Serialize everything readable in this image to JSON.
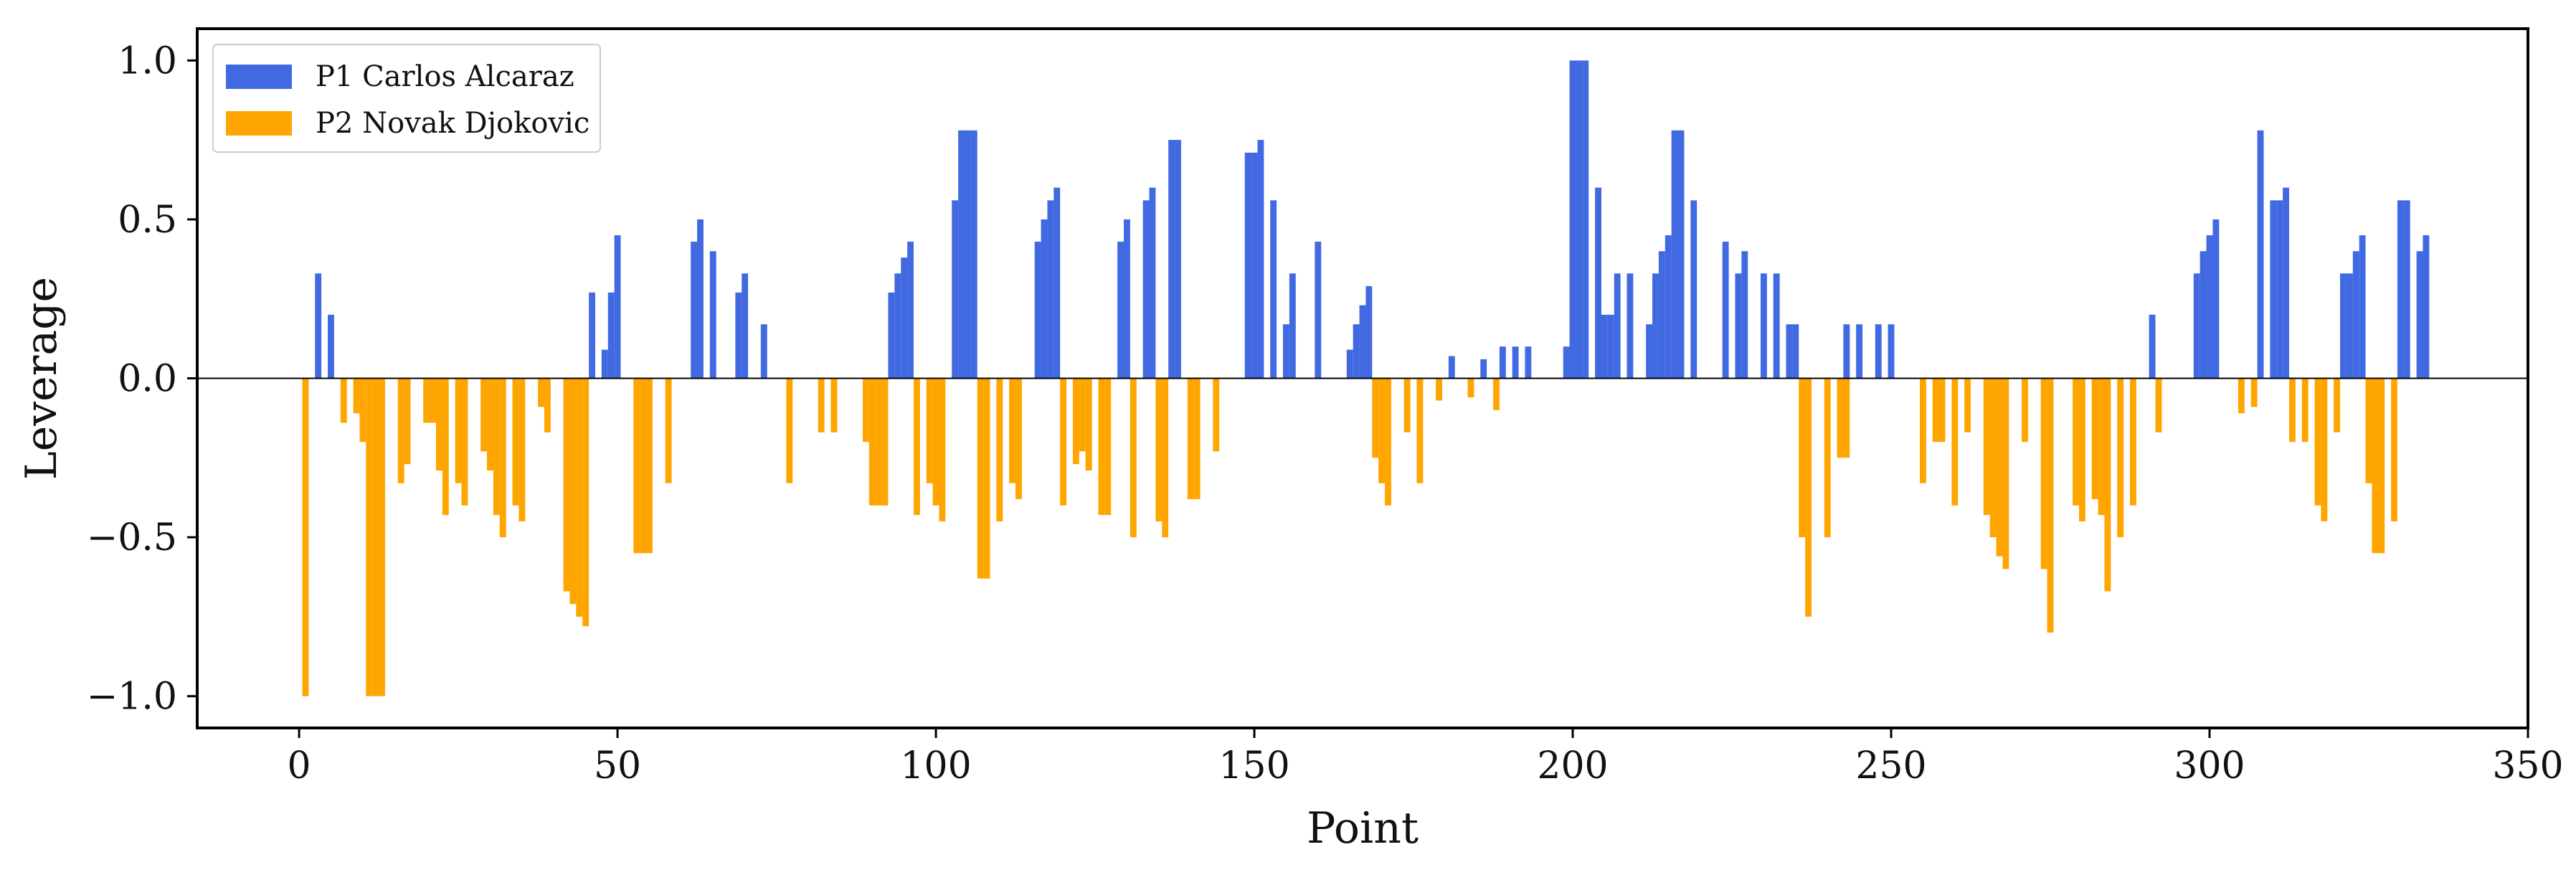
{
  "chart_data": {
    "type": "bar",
    "xlabel": "Point",
    "ylabel": "Leverage",
    "xlim": [
      -16,
      350
    ],
    "ylim": [
      -1.1,
      1.1
    ],
    "grid": false,
    "legend_placement": "upper-left",
    "x_ticks": [
      {
        "value": 0,
        "label": "0"
      },
      {
        "value": 50,
        "label": "50"
      },
      {
        "value": 100,
        "label": "100"
      },
      {
        "value": 150,
        "label": "150"
      },
      {
        "value": 200,
        "label": "200"
      },
      {
        "value": 250,
        "label": "250"
      },
      {
        "value": 300,
        "label": "300"
      },
      {
        "value": 350,
        "label": "350"
      }
    ],
    "y_ticks": [
      {
        "value": 1.0,
        "label": "1.0"
      },
      {
        "value": 0.5,
        "label": "0.5"
      },
      {
        "value": 0.0,
        "label": "0.0"
      },
      {
        "value": -0.5,
        "label": "−0.5"
      },
      {
        "value": -1.0,
        "label": "−1.0"
      }
    ],
    "series": [
      {
        "name": "P1 Carlos Alcaraz",
        "color": "#4169e1",
        "points": [
          [
            3,
            0.33
          ],
          [
            5,
            0.2
          ],
          [
            46,
            0.27
          ],
          [
            48,
            0.09
          ],
          [
            49,
            0.27
          ],
          [
            50,
            0.45
          ],
          [
            62,
            0.43
          ],
          [
            63,
            0.5
          ],
          [
            65,
            0.4
          ],
          [
            69,
            0.27
          ],
          [
            70,
            0.33
          ],
          [
            73,
            0.17
          ],
          [
            93,
            0.27
          ],
          [
            94,
            0.33
          ],
          [
            95,
            0.38
          ],
          [
            96,
            0.43
          ],
          [
            103,
            0.56
          ],
          [
            104,
            0.78
          ],
          [
            105,
            0.78
          ],
          [
            106,
            0.78
          ],
          [
            116,
            0.43
          ],
          [
            117,
            0.5
          ],
          [
            118,
            0.56
          ],
          [
            119,
            0.6
          ],
          [
            129,
            0.43
          ],
          [
            130,
            0.5
          ],
          [
            133,
            0.56
          ],
          [
            134,
            0.6
          ],
          [
            137,
            0.75
          ],
          [
            138,
            0.75
          ],
          [
            149,
            0.71
          ],
          [
            150,
            0.71
          ],
          [
            151,
            0.75
          ],
          [
            153,
            0.56
          ],
          [
            155,
            0.17
          ],
          [
            156,
            0.33
          ],
          [
            160,
            0.43
          ],
          [
            165,
            0.09
          ],
          [
            166,
            0.17
          ],
          [
            167,
            0.23
          ],
          [
            168,
            0.29
          ],
          [
            181,
            0.07
          ],
          [
            186,
            0.06
          ],
          [
            189,
            0.1
          ],
          [
            191,
            0.1
          ],
          [
            193,
            0.1
          ],
          [
            199,
            0.1
          ],
          [
            200,
            1.0
          ],
          [
            201,
            1.0
          ],
          [
            202,
            1.0
          ],
          [
            204,
            0.6
          ],
          [
            205,
            0.2
          ],
          [
            206,
            0.2
          ],
          [
            207,
            0.33
          ],
          [
            209,
            0.33
          ],
          [
            212,
            0.17
          ],
          [
            213,
            0.33
          ],
          [
            214,
            0.4
          ],
          [
            215,
            0.45
          ],
          [
            216,
            0.78
          ],
          [
            217,
            0.78
          ],
          [
            219,
            0.56
          ],
          [
            224,
            0.43
          ],
          [
            226,
            0.33
          ],
          [
            227,
            0.4
          ],
          [
            230,
            0.33
          ],
          [
            232,
            0.33
          ],
          [
            234,
            0.17
          ],
          [
            235,
            0.17
          ],
          [
            243,
            0.17
          ],
          [
            245,
            0.17
          ],
          [
            248,
            0.17
          ],
          [
            250,
            0.17
          ],
          [
            291,
            0.2
          ],
          [
            298,
            0.33
          ],
          [
            299,
            0.4
          ],
          [
            300,
            0.45
          ],
          [
            301,
            0.5
          ],
          [
            308,
            0.78
          ],
          [
            310,
            0.56
          ],
          [
            311,
            0.56
          ],
          [
            312,
            0.6
          ],
          [
            321,
            0.33
          ],
          [
            322,
            0.33
          ],
          [
            323,
            0.4
          ],
          [
            324,
            0.45
          ],
          [
            330,
            0.56
          ],
          [
            331,
            0.56
          ],
          [
            333,
            0.4
          ],
          [
            334,
            0.45
          ]
        ]
      },
      {
        "name": "P2 Novak Djokovic",
        "color": "#ffa500",
        "points": [
          [
            1,
            -1.0
          ],
          [
            7,
            -0.14
          ],
          [
            9,
            -0.11
          ],
          [
            10,
            -0.2
          ],
          [
            11,
            -1.0
          ],
          [
            12,
            -1.0
          ],
          [
            13,
            -1.0
          ],
          [
            16,
            -0.33
          ],
          [
            17,
            -0.27
          ],
          [
            20,
            -0.14
          ],
          [
            21,
            -0.14
          ],
          [
            22,
            -0.29
          ],
          [
            23,
            -0.43
          ],
          [
            25,
            -0.33
          ],
          [
            26,
            -0.4
          ],
          [
            29,
            -0.23
          ],
          [
            30,
            -0.29
          ],
          [
            31,
            -0.43
          ],
          [
            32,
            -0.5
          ],
          [
            34,
            -0.4
          ],
          [
            35,
            -0.45
          ],
          [
            38,
            -0.09
          ],
          [
            39,
            -0.17
          ],
          [
            42,
            -0.67
          ],
          [
            43,
            -0.71
          ],
          [
            44,
            -0.75
          ],
          [
            45,
            -0.78
          ],
          [
            53,
            -0.55
          ],
          [
            54,
            -0.55
          ],
          [
            55,
            -0.55
          ],
          [
            58,
            -0.33
          ],
          [
            77,
            -0.33
          ],
          [
            82,
            -0.17
          ],
          [
            84,
            -0.17
          ],
          [
            89,
            -0.2
          ],
          [
            90,
            -0.4
          ],
          [
            91,
            -0.4
          ],
          [
            92,
            -0.4
          ],
          [
            97,
            -0.43
          ],
          [
            99,
            -0.33
          ],
          [
            100,
            -0.4
          ],
          [
            101,
            -0.45
          ],
          [
            107,
            -0.63
          ],
          [
            108,
            -0.63
          ],
          [
            110,
            -0.45
          ],
          [
            112,
            -0.33
          ],
          [
            113,
            -0.38
          ],
          [
            120,
            -0.4
          ],
          [
            122,
            -0.27
          ],
          [
            123,
            -0.23
          ],
          [
            124,
            -0.29
          ],
          [
            126,
            -0.43
          ],
          [
            127,
            -0.43
          ],
          [
            131,
            -0.5
          ],
          [
            135,
            -0.45
          ],
          [
            136,
            -0.5
          ],
          [
            140,
            -0.38
          ],
          [
            141,
            -0.38
          ],
          [
            144,
            -0.23
          ],
          [
            169,
            -0.25
          ],
          [
            170,
            -0.33
          ],
          [
            171,
            -0.4
          ],
          [
            174,
            -0.17
          ],
          [
            176,
            -0.33
          ],
          [
            179,
            -0.07
          ],
          [
            184,
            -0.06
          ],
          [
            188,
            -0.1
          ],
          [
            236,
            -0.5
          ],
          [
            237,
            -0.75
          ],
          [
            240,
            -0.5
          ],
          [
            242,
            -0.25
          ],
          [
            243,
            -0.25
          ],
          [
            255,
            -0.33
          ],
          [
            257,
            -0.2
          ],
          [
            258,
            -0.2
          ],
          [
            260,
            -0.4
          ],
          [
            262,
            -0.17
          ],
          [
            265,
            -0.43
          ],
          [
            266,
            -0.5
          ],
          [
            267,
            -0.56
          ],
          [
            268,
            -0.6
          ],
          [
            271,
            -0.2
          ],
          [
            274,
            -0.6
          ],
          [
            275,
            -0.8
          ],
          [
            279,
            -0.4
          ],
          [
            280,
            -0.45
          ],
          [
            282,
            -0.38
          ],
          [
            283,
            -0.43
          ],
          [
            284,
            -0.67
          ],
          [
            286,
            -0.5
          ],
          [
            288,
            -0.4
          ],
          [
            292,
            -0.17
          ],
          [
            305,
            -0.11
          ],
          [
            307,
            -0.09
          ],
          [
            313,
            -0.2
          ],
          [
            315,
            -0.2
          ],
          [
            317,
            -0.4
          ],
          [
            318,
            -0.45
          ],
          [
            320,
            -0.17
          ],
          [
            325,
            -0.33
          ],
          [
            326,
            -0.55
          ],
          [
            327,
            -0.55
          ],
          [
            329,
            -0.45
          ]
        ]
      }
    ]
  }
}
